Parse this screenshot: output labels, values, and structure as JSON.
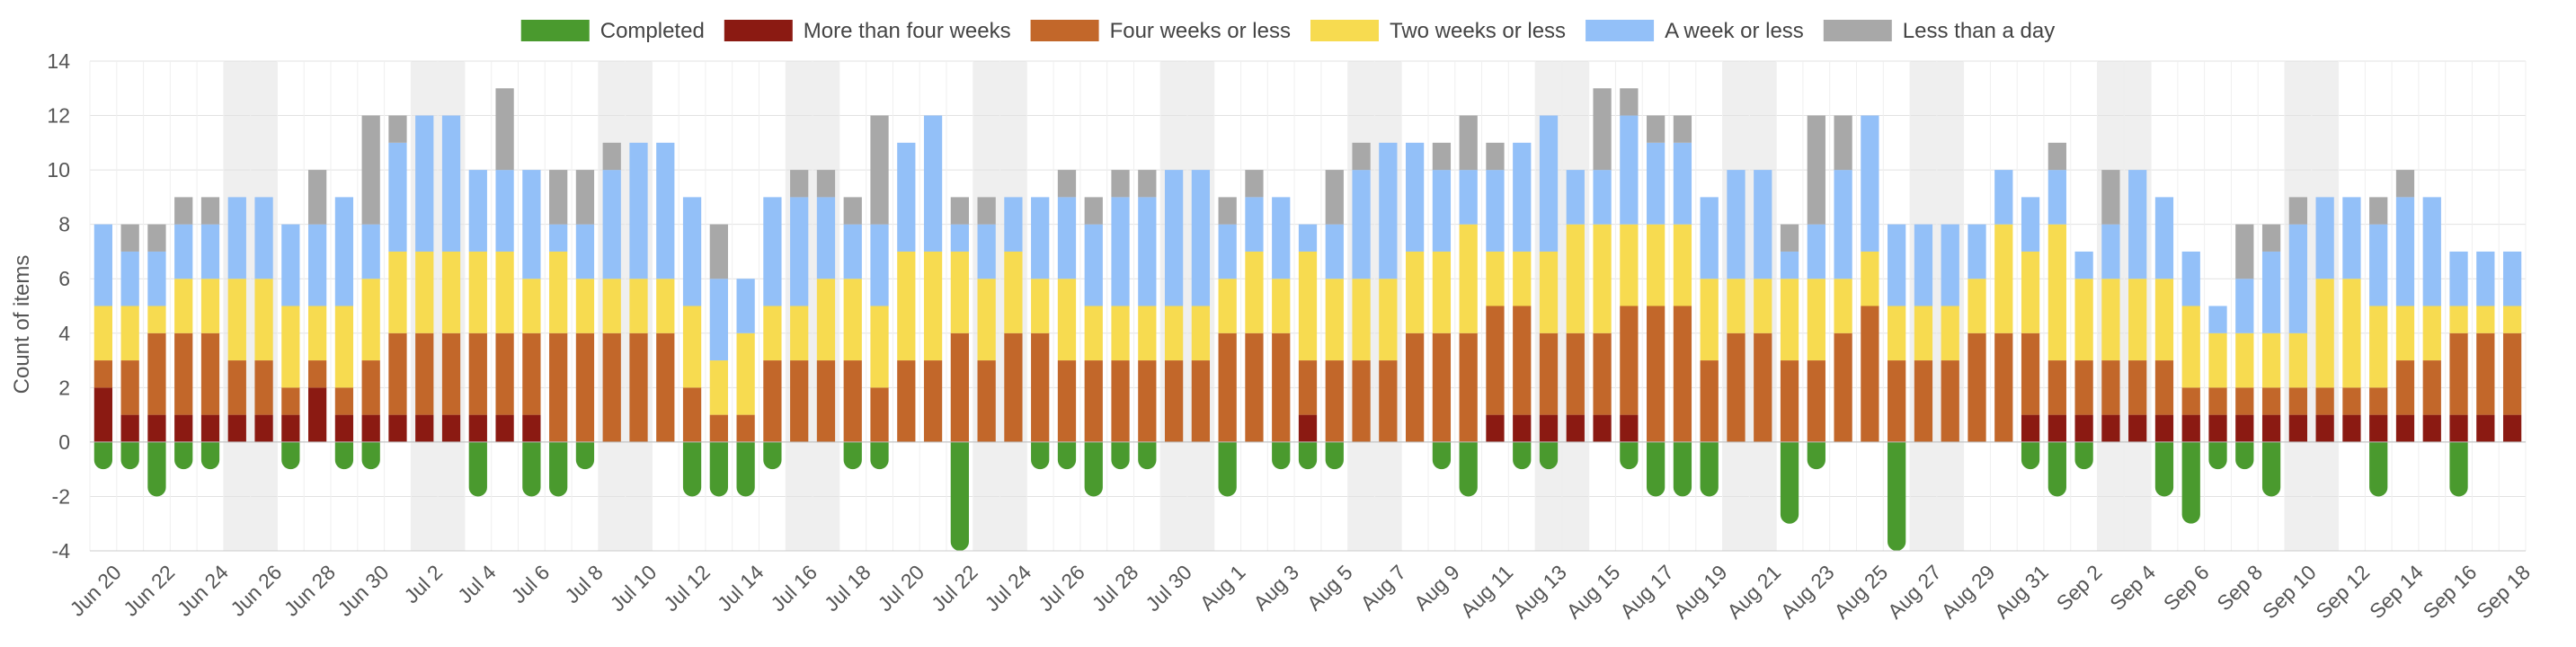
{
  "chart_data": {
    "type": "bar",
    "stacked": true,
    "ylabel": "Count of items",
    "ylim": [
      -4,
      14
    ],
    "yticks": [
      -4,
      -2,
      0,
      2,
      4,
      6,
      8,
      10,
      12,
      14
    ],
    "grid": true,
    "legend_position": "top-center",
    "categories": [
      "Jun 20",
      "Jun 21",
      "Jun 22",
      "Jun 23",
      "Jun 24",
      "Jun 25",
      "Jun 26",
      "Jun 27",
      "Jun 28",
      "Jun 29",
      "Jun 30",
      "Jul 1",
      "Jul 2",
      "Jul 3",
      "Jul 4",
      "Jul 5",
      "Jul 6",
      "Jul 7",
      "Jul 8",
      "Jul 9",
      "Jul 10",
      "Jul 11",
      "Jul 12",
      "Jul 13",
      "Jul 14",
      "Jul 15",
      "Jul 16",
      "Jul 17",
      "Jul 18",
      "Jul 19",
      "Jul 20",
      "Jul 21",
      "Jul 22",
      "Jul 23",
      "Jul 24",
      "Jul 25",
      "Jul 26",
      "Jul 27",
      "Jul 28",
      "Jul 29",
      "Jul 30",
      "Jul 31",
      "Aug 1",
      "Aug 2",
      "Aug 3",
      "Aug 4",
      "Aug 5",
      "Aug 6",
      "Aug 7",
      "Aug 8",
      "Aug 9",
      "Aug 10",
      "Aug 11",
      "Aug 12",
      "Aug 13",
      "Aug 14",
      "Aug 15",
      "Aug 16",
      "Aug 17",
      "Aug 18",
      "Aug 19",
      "Aug 20",
      "Aug 21",
      "Aug 22",
      "Aug 23",
      "Aug 24",
      "Aug 25",
      "Aug 26",
      "Aug 27",
      "Aug 28",
      "Aug 29",
      "Aug 30",
      "Aug 31",
      "Sep 1",
      "Sep 2",
      "Sep 3",
      "Sep 4",
      "Sep 5",
      "Sep 6",
      "Sep 7",
      "Sep 8",
      "Sep 9",
      "Sep 10",
      "Sep 11",
      "Sep 12",
      "Sep 13",
      "Sep 14",
      "Sep 15",
      "Sep 16",
      "Sep 17",
      "Sep 18"
    ],
    "x_tick_labels": [
      "Jun 20",
      "Jun 22",
      "Jun 24",
      "Jun 26",
      "Jun 28",
      "Jun 30",
      "Jul 2",
      "Jul 4",
      "Jul 6",
      "Jul 8",
      "Jul 10",
      "Jul 12",
      "Jul 14",
      "Jul 16",
      "Jul 18",
      "Jul 20",
      "Jul 22",
      "Jul 24",
      "Jul 26",
      "Jul 28",
      "Jul 30",
      "Aug 1",
      "Aug 3",
      "Aug 5",
      "Aug 7",
      "Aug 9",
      "Aug 11",
      "Aug 13",
      "Aug 15",
      "Aug 17",
      "Aug 19",
      "Aug 21",
      "Aug 23",
      "Aug 25",
      "Aug 27",
      "Aug 29",
      "Aug 31",
      "Sep 2",
      "Sep 4",
      "Sep 6",
      "Sep 8",
      "Sep 10",
      "Sep 12",
      "Sep 14",
      "Sep 16",
      "Sep 18"
    ],
    "weekend_bands": [
      [
        "Jun 25",
        "Jun 26"
      ],
      [
        "Jul 2",
        "Jul 3"
      ],
      [
        "Jul 9",
        "Jul 10"
      ],
      [
        "Jul 16",
        "Jul 17"
      ],
      [
        "Jul 23",
        "Jul 24"
      ],
      [
        "Jul 30",
        "Jul 31"
      ],
      [
        "Aug 6",
        "Aug 7"
      ],
      [
        "Aug 13",
        "Aug 14"
      ],
      [
        "Aug 20",
        "Aug 21"
      ],
      [
        "Aug 27",
        "Aug 28"
      ],
      [
        "Sep 3",
        "Sep 4"
      ],
      [
        "Sep 10",
        "Sep 11"
      ]
    ],
    "series": [
      {
        "name": "Completed",
        "color": "#4a9a2e",
        "values": [
          -1,
          -1,
          -2,
          -1,
          -1,
          0,
          0,
          -1,
          0,
          -1,
          -1,
          0,
          0,
          0,
          -2,
          0,
          -2,
          -2,
          -1,
          0,
          0,
          0,
          -2,
          -2,
          -2,
          -1,
          0,
          0,
          -1,
          -1,
          0,
          0,
          -4,
          0,
          0,
          -1,
          -1,
          -2,
          -1,
          -1,
          0,
          0,
          -2,
          0,
          -1,
          -1,
          -1,
          0,
          0,
          0,
          -1,
          -2,
          0,
          -1,
          -1,
          0,
          0,
          -1,
          -2,
          -2,
          -2,
          0,
          0,
          -3,
          -1,
          0,
          0,
          -4,
          0,
          0,
          0,
          0,
          -1,
          -2,
          -1,
          0,
          0,
          -2,
          -3,
          -1,
          -1,
          -2,
          0,
          0,
          0,
          -2,
          0,
          0,
          -2,
          0,
          0
        ]
      },
      {
        "name": "More than four weeks",
        "color": "#8b1a12",
        "values": [
          2,
          1,
          1,
          1,
          1,
          1,
          1,
          1,
          2,
          1,
          1,
          1,
          1,
          1,
          1,
          1,
          1,
          0,
          0,
          0,
          0,
          0,
          0,
          0,
          0,
          0,
          0,
          0,
          0,
          0,
          0,
          0,
          0,
          0,
          0,
          0,
          0,
          0,
          0,
          0,
          0,
          0,
          0,
          0,
          0,
          1,
          0,
          0,
          0,
          0,
          0,
          0,
          1,
          1,
          1,
          1,
          1,
          1,
          0,
          0,
          0,
          0,
          0,
          0,
          0,
          0,
          0,
          0,
          0,
          0,
          0,
          0,
          1,
          1,
          1,
          1,
          1,
          1,
          1,
          1,
          1,
          1,
          1,
          1,
          1,
          1,
          1,
          1,
          1,
          1,
          1
        ]
      },
      {
        "name": "Four weeks or less",
        "color": "#c2672a",
        "values": [
          1,
          2,
          3,
          3,
          3,
          2,
          2,
          1,
          1,
          1,
          2,
          3,
          3,
          3,
          3,
          3,
          3,
          4,
          4,
          4,
          4,
          4,
          2,
          1,
          1,
          3,
          3,
          3,
          3,
          2,
          3,
          3,
          4,
          3,
          4,
          4,
          3,
          3,
          3,
          3,
          3,
          3,
          4,
          4,
          4,
          2,
          3,
          3,
          3,
          4,
          4,
          4,
          4,
          4,
          3,
          3,
          3,
          4,
          5,
          5,
          3,
          4,
          4,
          3,
          3,
          4,
          5,
          3,
          3,
          3,
          4,
          4,
          3,
          2,
          2,
          2,
          2,
          2,
          1,
          1,
          1,
          1,
          1,
          1,
          1,
          1,
          2,
          2,
          3,
          3,
          3
        ]
      },
      {
        "name": "Two weeks or less",
        "color": "#f7db50",
        "values": [
          2,
          2,
          1,
          2,
          2,
          3,
          3,
          3,
          2,
          3,
          3,
          3,
          3,
          3,
          3,
          3,
          2,
          3,
          2,
          2,
          2,
          2,
          3,
          2,
          3,
          2,
          2,
          3,
          3,
          3,
          4,
          4,
          3,
          3,
          3,
          2,
          3,
          2,
          2,
          2,
          2,
          2,
          2,
          3,
          2,
          4,
          3,
          3,
          3,
          3,
          3,
          4,
          2,
          2,
          3,
          4,
          4,
          3,
          3,
          3,
          3,
          2,
          2,
          3,
          3,
          2,
          2,
          2,
          2,
          2,
          2,
          4,
          3,
          5,
          3,
          3,
          3,
          3,
          3,
          2,
          2,
          2,
          2,
          4,
          4,
          3,
          2,
          2,
          1,
          1,
          1
        ]
      },
      {
        "name": "A week or less",
        "color": "#93c0f8",
        "values": [
          3,
          2,
          2,
          2,
          2,
          3,
          3,
          3,
          3,
          4,
          2,
          4,
          5,
          5,
          3,
          3,
          4,
          1,
          2,
          4,
          5,
          5,
          4,
          3,
          2,
          4,
          4,
          3,
          2,
          3,
          4,
          5,
          1,
          2,
          2,
          3,
          3,
          3,
          4,
          4,
          5,
          5,
          2,
          2,
          3,
          1,
          2,
          4,
          5,
          4,
          3,
          2,
          3,
          4,
          5,
          2,
          2,
          4,
          3,
          3,
          3,
          4,
          4,
          1,
          2,
          4,
          5,
          3,
          3,
          3,
          2,
          2,
          2,
          2,
          1,
          2,
          4,
          3,
          2,
          1,
          2,
          3,
          4,
          3,
          3,
          3,
          4,
          4,
          2,
          2,
          2
        ]
      },
      {
        "name": "Less than a day",
        "color": "#a8a8a8",
        "values": [
          0,
          1,
          1,
          1,
          1,
          0,
          0,
          0,
          2,
          0,
          4,
          1,
          0,
          0,
          0,
          3,
          0,
          2,
          2,
          1,
          0,
          0,
          0,
          2,
          0,
          0,
          1,
          1,
          1,
          4,
          0,
          0,
          1,
          1,
          0,
          0,
          1,
          1,
          1,
          1,
          0,
          0,
          1,
          1,
          0,
          0,
          2,
          1,
          0,
          0,
          1,
          2,
          1,
          0,
          0,
          0,
          3,
          1,
          1,
          1,
          0,
          0,
          0,
          1,
          4,
          2,
          0,
          0,
          0,
          0,
          0,
          0,
          0,
          1,
          0,
          2,
          0,
          0,
          0,
          0,
          2,
          1,
          1,
          0,
          0,
          1,
          1,
          0,
          0,
          0,
          0
        ]
      }
    ]
  }
}
